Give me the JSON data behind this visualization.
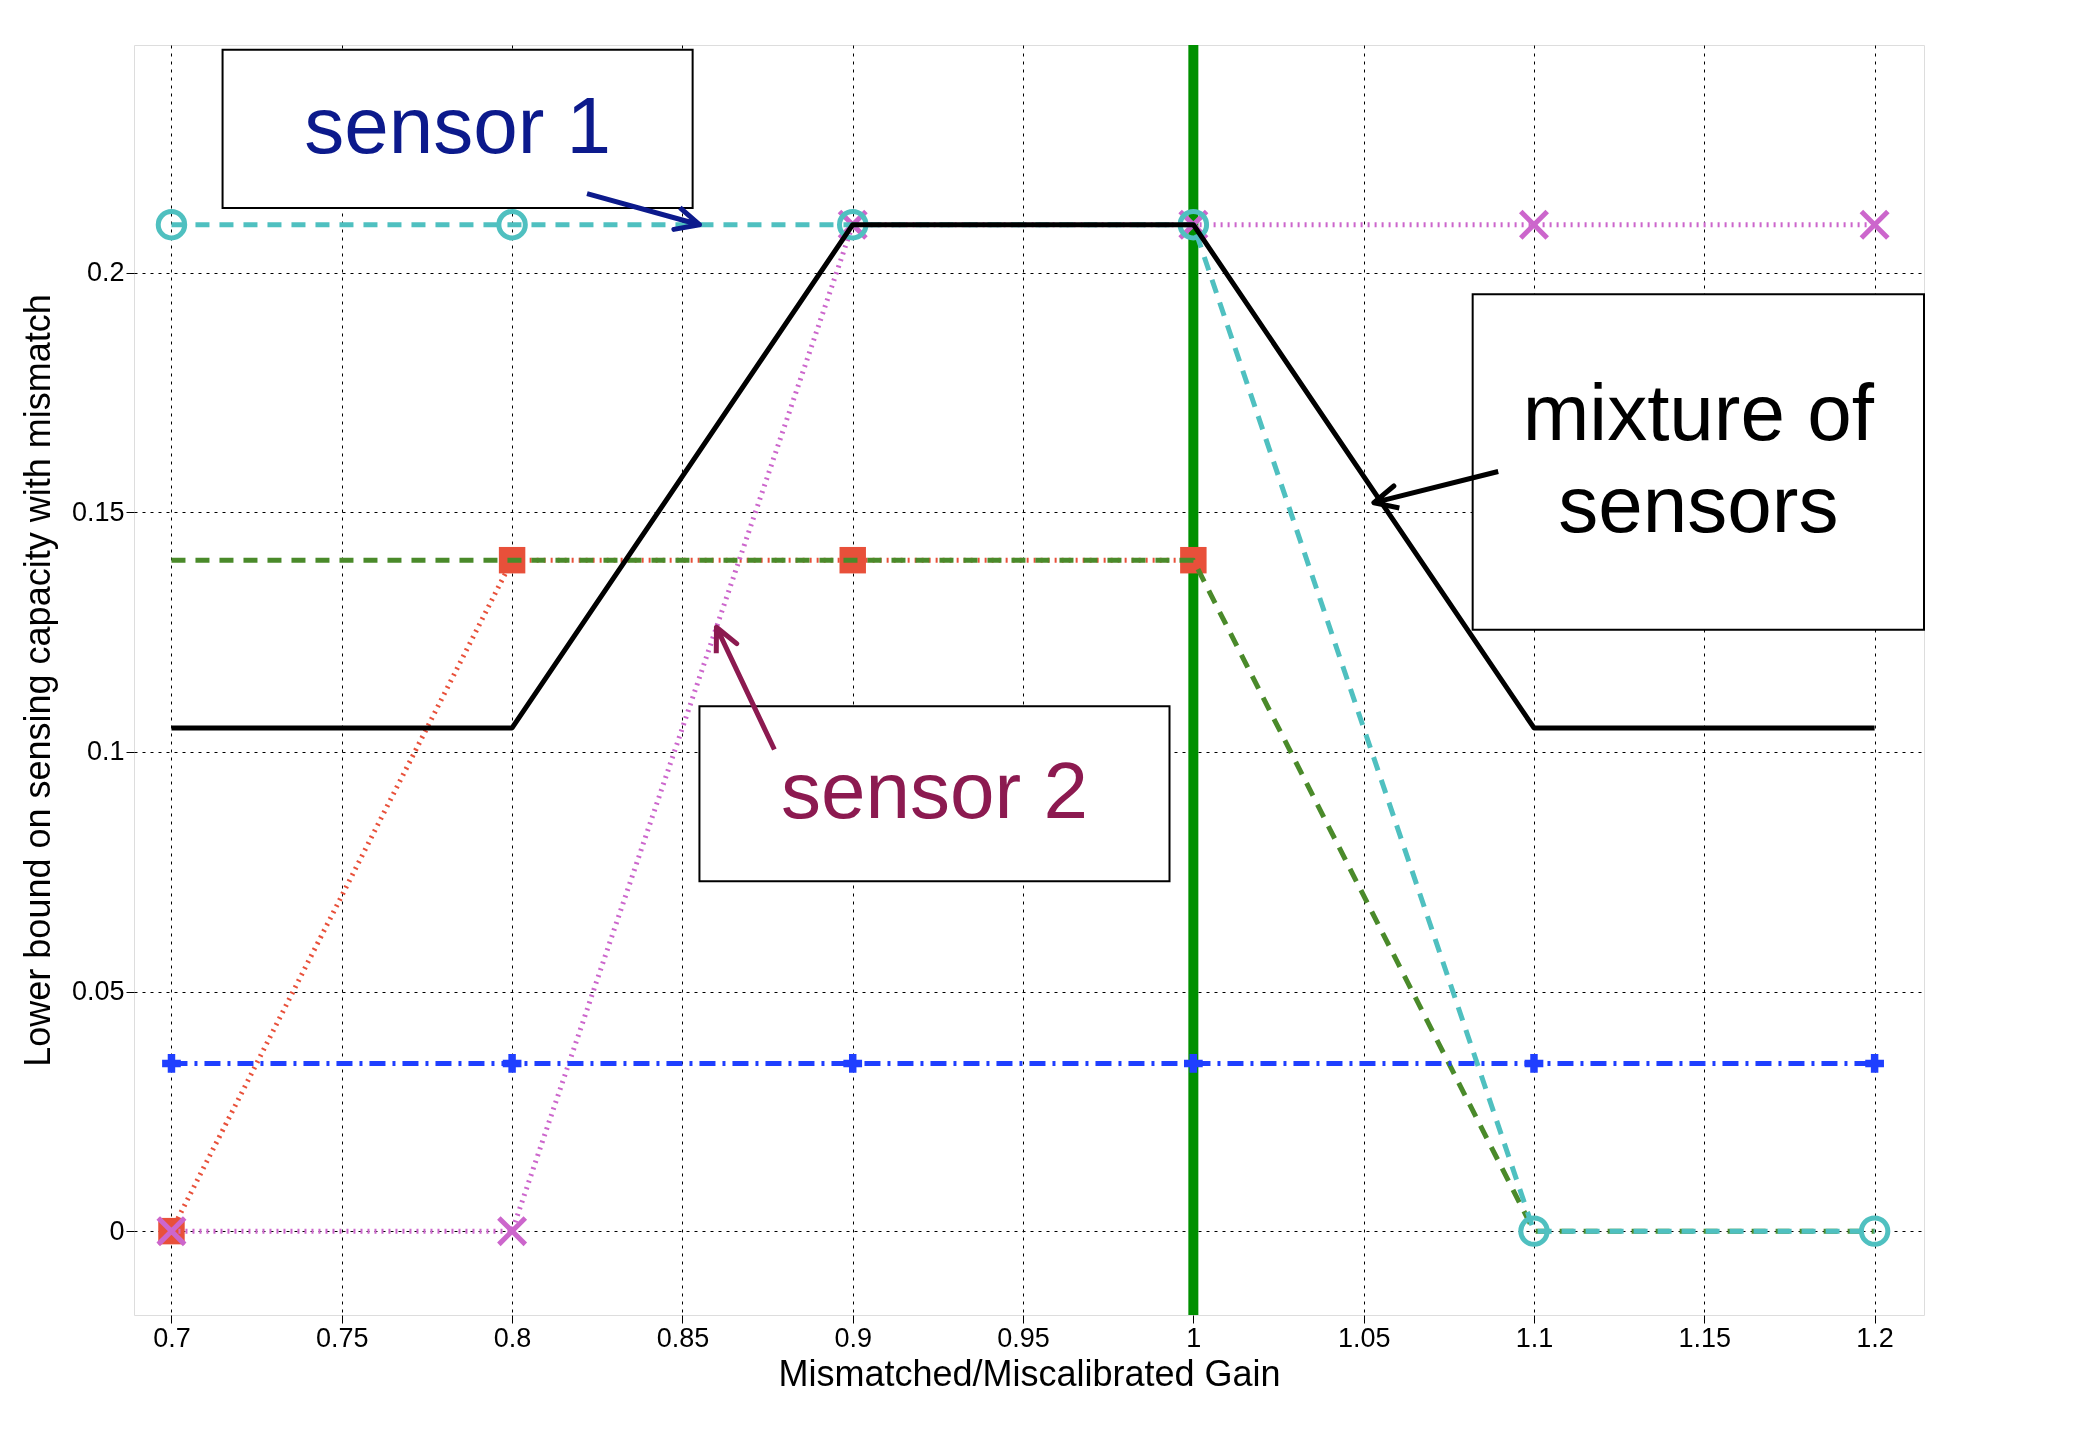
{
  "chart_data": {
    "type": "line",
    "xlabel": "Mismatched/Miscalibrated Gain",
    "ylabel": "Lower bound on sensing capacity with mismatch",
    "x": [
      0.7,
      0.8,
      0.9,
      1.0,
      1.1,
      1.2
    ],
    "xlim": [
      0.689,
      1.2145
    ],
    "ylim": [
      -0.0175,
      0.2475
    ],
    "xticks": [
      0.7,
      0.75,
      0.8,
      0.85,
      0.9,
      0.95,
      1,
      1.05,
      1.1,
      1.15,
      1.2
    ],
    "yticks": [
      0,
      0.05,
      0.1,
      0.15,
      0.2
    ],
    "grid": true,
    "series": [
      {
        "color": "#e8503a",
        "line_style": "dotted",
        "marker": "square",
        "values": [
          0,
          0.14,
          0.14,
          0.14,
          null,
          null
        ]
      },
      {
        "color": "#4a8a2a",
        "line_style": "dashed",
        "marker": "none",
        "values": [
          0.14,
          0.14,
          0.14,
          0.14,
          0,
          0
        ]
      },
      {
        "color": "#cc66cc",
        "line_style": "dotted",
        "marker": "x",
        "values": [
          0,
          0,
          0.21,
          0.21,
          0.21,
          0.21
        ]
      },
      {
        "color": "#4fc0c0",
        "line_style": "dashed",
        "marker": "circle",
        "values": [
          0.21,
          0.21,
          0.21,
          0.21,
          0,
          0
        ]
      },
      {
        "color": "#000000",
        "line_style": "solid",
        "marker": "none",
        "values": [
          0.105,
          0.105,
          0.21,
          0.21,
          0.105,
          0.105
        ]
      },
      {
        "color": "#1f3fff",
        "line_style": "dashdot",
        "marker": "cross",
        "values": [
          0.035,
          0.035,
          0.035,
          0.035,
          0.035,
          0.035
        ]
      }
    ],
    "ref_lines": [
      {
        "axis": "x",
        "value": 1.0,
        "color": "#009000"
      }
    ],
    "annotations": [
      {
        "text": "sensor 1",
        "x": 0.855,
        "y": 0.21
      },
      {
        "text": "sensor 2",
        "x": 0.86,
        "y": 0.126
      },
      {
        "text": "mixture of sensors",
        "x": 1.053,
        "y": 0.152
      }
    ]
  }
}
